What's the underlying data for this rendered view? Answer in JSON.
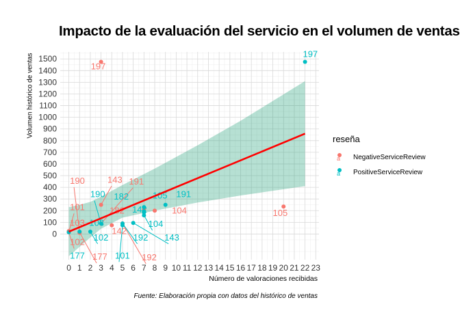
{
  "chart_data": {
    "type": "scatter",
    "title": "Impacto de la evaluación del servicio en el volumen de ventas",
    "xlabel": "Número de valoraciones recibidas",
    "ylabel": "Volumen histórico de ventas",
    "caption": "Fuente: Elaboración propia con datos del histórico de ventas",
    "legend_title": "reseña",
    "legend_position": "right",
    "grid": true,
    "xlim": [
      -0.8,
      23.3
    ],
    "ylim": [
      -220,
      1560
    ],
    "x_ticks": [
      0,
      1,
      2,
      3,
      4,
      5,
      6,
      7,
      8,
      9,
      10,
      11,
      12,
      13,
      14,
      15,
      16,
      17,
      18,
      19,
      20,
      21,
      22,
      23
    ],
    "y_ticks": [
      0,
      100,
      200,
      300,
      400,
      500,
      600,
      700,
      800,
      900,
      1000,
      1100,
      1200,
      1300,
      1400,
      1500
    ],
    "series": [
      {
        "name": "NegativeServiceReview",
        "color": "#F8766D",
        "points": [
          {
            "x": 0,
            "y": 15,
            "label": "102"
          },
          {
            "x": 0,
            "y": 20,
            "label": "101"
          },
          {
            "x": 0,
            "y": 25,
            "label": "103"
          },
          {
            "x": 1,
            "y": 10,
            "label": "190"
          },
          {
            "x": 1,
            "y": 15,
            "label": "177"
          },
          {
            "x": 3,
            "y": 90,
            "label": "191"
          },
          {
            "x": 3,
            "y": 250,
            "label": "143"
          },
          {
            "x": 3,
            "y": 1475,
            "label": "197"
          },
          {
            "x": 4,
            "y": 75,
            "label": "142"
          },
          {
            "x": 5,
            "y": 90,
            "label": "192"
          },
          {
            "x": 7,
            "y": 210,
            "label": "182"
          },
          {
            "x": 8,
            "y": 200,
            "label": "104"
          },
          {
            "x": 20,
            "y": 235,
            "label": "105"
          }
        ]
      },
      {
        "name": "PositiveServiceReview",
        "color": "#00BFC4",
        "points": [
          {
            "x": 0,
            "y": 15,
            "label": "177"
          },
          {
            "x": 1,
            "y": 20,
            "label": "103"
          },
          {
            "x": 2,
            "y": 20,
            "label": "102"
          },
          {
            "x": 3,
            "y": 90,
            "label": "190"
          },
          {
            "x": 5,
            "y": 75,
            "label": "101"
          },
          {
            "x": 5,
            "y": 90,
            "label": "192"
          },
          {
            "x": 6,
            "y": 95,
            "label": "143"
          },
          {
            "x": 7,
            "y": 230,
            "label": "105"
          },
          {
            "x": 7,
            "y": 195,
            "label": "142"
          },
          {
            "x": 7,
            "y": 185,
            "label": "182"
          },
          {
            "x": 7,
            "y": 160,
            "label": "104"
          },
          {
            "x": 9,
            "y": 250,
            "label": "191"
          },
          {
            "x": 22,
            "y": 1475,
            "label": "197"
          }
        ]
      }
    ],
    "trend_line": {
      "color": "#FF0000",
      "points": [
        [
          0,
          20
        ],
        [
          22,
          860
        ]
      ]
    },
    "confidence_band": {
      "color": "#1B9E77",
      "x": [
        0,
        1,
        2,
        3,
        5,
        8,
        12,
        16,
        22
      ],
      "upper": [
        230,
        250,
        275,
        320,
        420,
        560,
        760,
        970,
        1310
      ],
      "lower": [
        -190,
        -110,
        -30,
        45,
        140,
        200,
        270,
        330,
        410
      ]
    },
    "annotations": [
      {
        "text": "197",
        "series": "NegativeServiceReview",
        "x": 2.05,
        "y": 1410,
        "ax": 3,
        "ay": 1475,
        "line": false
      },
      {
        "text": "190",
        "series": "NegativeServiceReview",
        "x": 0.1,
        "y": 430,
        "ax": 1,
        "ay": 10,
        "line": true
      },
      {
        "text": "143",
        "series": "NegativeServiceReview",
        "x": 3.6,
        "y": 440,
        "ax": 3,
        "ay": 250,
        "line": true
      },
      {
        "text": "191",
        "series": "NegativeServiceReview",
        "x": 5.6,
        "y": 425,
        "ax": 3,
        "ay": 90,
        "line": true
      },
      {
        "text": "101",
        "series": "NegativeServiceReview",
        "x": 0.1,
        "y": 205,
        "ax": 0,
        "ay": 20,
        "line": true
      },
      {
        "text": "103",
        "series": "NegativeServiceReview",
        "x": 0.1,
        "y": 70,
        "ax": 0,
        "ay": 25,
        "line": false
      },
      {
        "text": "102",
        "series": "NegativeServiceReview",
        "x": 0.1,
        "y": -95,
        "ax": 0,
        "ay": 15,
        "line": true
      },
      {
        "text": "177",
        "series": "NegativeServiceReview",
        "x": 2.2,
        "y": -220,
        "ax": 1,
        "ay": 15,
        "line": true
      },
      {
        "text": "182",
        "series": "NegativeServiceReview",
        "x": 3.8,
        "y": 175,
        "ax": 7,
        "ay": 210,
        "line": false
      },
      {
        "text": "142",
        "series": "NegativeServiceReview",
        "x": 4.0,
        "y": -1,
        "ax": 4,
        "ay": 75,
        "line": false
      },
      {
        "text": "192",
        "series": "NegativeServiceReview",
        "x": 6.8,
        "y": -225,
        "ax": 5,
        "ay": 90,
        "line": true
      },
      {
        "text": "104",
        "series": "NegativeServiceReview",
        "x": 9.6,
        "y": 175,
        "ax": 8,
        "ay": 200,
        "line": false
      },
      {
        "text": "105",
        "series": "NegativeServiceReview",
        "x": 19.0,
        "y": 155,
        "ax": 20,
        "ay": 235,
        "line": false
      },
      {
        "text": "190",
        "series": "PositiveServiceReview",
        "x": 2.0,
        "y": 315,
        "ax": 3,
        "ay": 90,
        "line": true
      },
      {
        "text": "182",
        "series": "PositiveServiceReview",
        "x": 4.2,
        "y": 295,
        "ax": 7,
        "ay": 185,
        "line": false
      },
      {
        "text": "103",
        "series": "PositiveServiceReview",
        "x": 1.9,
        "y": 70,
        "ax": 1,
        "ay": 20,
        "line": false
      },
      {
        "text": "142",
        "series": "PositiveServiceReview",
        "x": 5.9,
        "y": 185,
        "ax": 7,
        "ay": 195,
        "line": false
      },
      {
        "text": "105",
        "series": "PositiveServiceReview",
        "x": 7.8,
        "y": 305,
        "ax": 7,
        "ay": 230,
        "line": false
      },
      {
        "text": "191",
        "series": "PositiveServiceReview",
        "x": 10.0,
        "y": 315,
        "ax": 9,
        "ay": 250,
        "line": false
      },
      {
        "text": "104",
        "series": "PositiveServiceReview",
        "x": 7.4,
        "y": 60,
        "ax": 7,
        "ay": 160,
        "line": true
      },
      {
        "text": "192",
        "series": "PositiveServiceReview",
        "x": 6.0,
        "y": -55,
        "ax": 5,
        "ay": 90,
        "line": true
      },
      {
        "text": "143",
        "series": "PositiveServiceReview",
        "x": 8.9,
        "y": -55,
        "ax": 6,
        "ay": 95,
        "line": true
      },
      {
        "text": "102",
        "series": "PositiveServiceReview",
        "x": 2.3,
        "y": -55,
        "ax": 2,
        "ay": 20,
        "line": true
      },
      {
        "text": "101",
        "series": "PositiveServiceReview",
        "x": 4.3,
        "y": -210,
        "ax": 5,
        "ay": 75,
        "line": true
      },
      {
        "text": "177",
        "series": "PositiveServiceReview",
        "x": 0.1,
        "y": -210,
        "ax": 0,
        "ay": 15,
        "line": false
      },
      {
        "text": "197",
        "series": "PositiveServiceReview",
        "x": 21.8,
        "y": 1515,
        "ax": 22,
        "ay": 1475,
        "line": false
      }
    ]
  }
}
